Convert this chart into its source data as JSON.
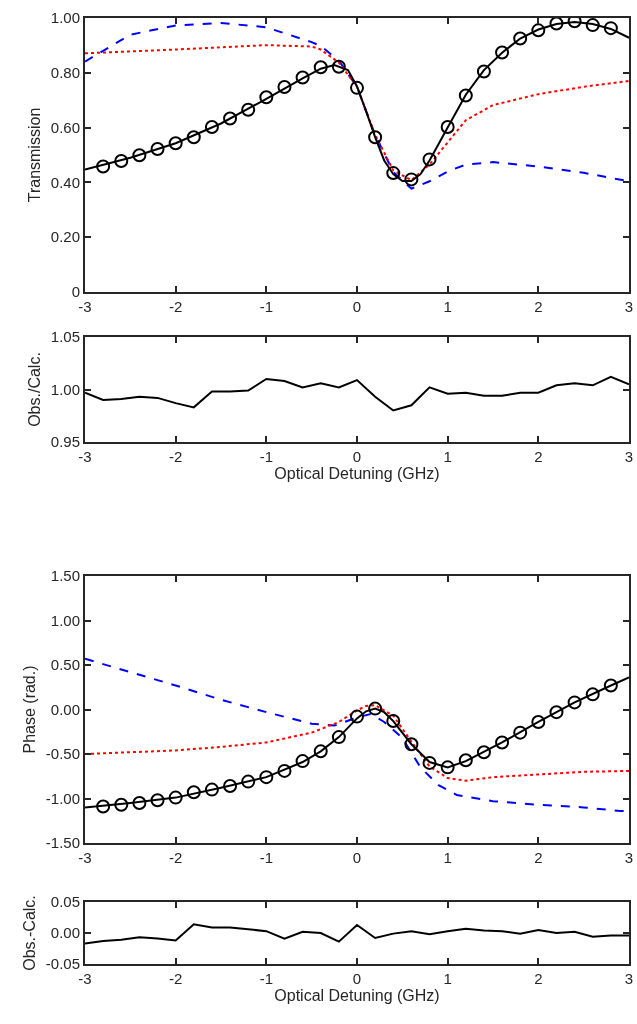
{
  "chart_data": [
    {
      "type": "line",
      "ylabel": "Transmission",
      "xlim": [
        -3,
        3
      ],
      "xticks": [
        -3,
        -2,
        -1,
        0,
        1,
        2,
        3
      ],
      "ylim": [
        0,
        1
      ],
      "yticks": [
        0,
        {
          "value": 0.2,
          "label": "0.20"
        },
        {
          "value": 0.4,
          "label": "0.40"
        },
        {
          "value": 0.6,
          "label": "0.60"
        },
        {
          "value": 0.8,
          "label": "0.80"
        },
        {
          "value": 1,
          "label": "1.00"
        }
      ],
      "series": [
        {
          "color": "#0000ff",
          "line_style": "dashed",
          "x": [
            -3,
            -2.5,
            -2,
            -1.5,
            -1,
            -0.5,
            -0.4,
            -0.2,
            0,
            0.2,
            0.4,
            0.6,
            0.8,
            1.0,
            1.2,
            1.5,
            2.0,
            2.5,
            3
          ],
          "values": [
            0.841,
            0.939,
            0.973,
            0.982,
            0.966,
            0.912,
            0.898,
            0.844,
            0.749,
            0.573,
            0.438,
            0.377,
            0.404,
            0.44,
            0.465,
            0.474,
            0.458,
            0.435,
            0.404
          ]
        },
        {
          "color": "#ff0000",
          "line_style": "dotted",
          "x": [
            -3,
            -2,
            -1,
            -0.5,
            -0.4,
            -0.2,
            0,
            0.2,
            0.4,
            0.6,
            0.8,
            1.0,
            1.2,
            1.5,
            2.0,
            2.5,
            3
          ],
          "values": [
            0.871,
            0.885,
            0.901,
            0.896,
            0.885,
            0.837,
            0.749,
            0.573,
            0.444,
            0.408,
            0.465,
            0.546,
            0.627,
            0.682,
            0.722,
            0.749,
            0.77
          ]
        },
        {
          "color": "#000000",
          "line_style": "solid",
          "x": [
            -3,
            -2.5,
            -2,
            -1.5,
            -1,
            -0.6,
            -0.4,
            -0.25,
            -0.1,
            0,
            0.1,
            0.2,
            0.3,
            0.4,
            0.5,
            0.6,
            0.7,
            0.8,
            1.0,
            1.2,
            1.4,
            1.6,
            1.8,
            2.0,
            2.2,
            2.4,
            2.6,
            2.8,
            3
          ],
          "values": [
            0.447,
            0.49,
            0.543,
            0.615,
            0.705,
            0.78,
            0.815,
            0.828,
            0.81,
            0.75,
            0.66,
            0.565,
            0.48,
            0.43,
            0.405,
            0.405,
            0.43,
            0.48,
            0.6,
            0.72,
            0.81,
            0.873,
            0.925,
            0.958,
            0.978,
            0.985,
            0.978,
            0.96,
            0.928
          ]
        },
        {
          "type": "scatter",
          "color": "#000000",
          "marker": "circle",
          "x": [
            -2.8,
            -2.6,
            -2.4,
            -2.2,
            -2.0,
            -1.8,
            -1.6,
            -1.4,
            -1.2,
            -1.0,
            -0.8,
            -0.6,
            -0.4,
            -0.2,
            0,
            0.2,
            0.4,
            0.6,
            0.8,
            1.0,
            1.2,
            1.4,
            1.6,
            1.8,
            2.0,
            2.2,
            2.4,
            2.6,
            2.8
          ],
          "values": [
            0.458,
            0.478,
            0.499,
            0.522,
            0.543,
            0.565,
            0.602,
            0.633,
            0.665,
            0.711,
            0.748,
            0.783,
            0.82,
            0.822,
            0.745,
            0.565,
            0.434,
            0.411,
            0.484,
            0.602,
            0.717,
            0.805,
            0.874,
            0.925,
            0.955,
            0.98,
            0.988,
            0.974,
            0.963
          ]
        }
      ]
    },
    {
      "type": "line",
      "ylabel": "Obs./Calc.",
      "xlabel": "Optical Detuning (GHz)",
      "xlim": [
        -3,
        3
      ],
      "xticks": [
        -3,
        -2,
        -1,
        0,
        1,
        2,
        3
      ],
      "ylim": [
        0.95,
        1.05
      ],
      "yticks": [
        0.95,
        {
          "value": 1,
          "label": "1.00"
        },
        1.05
      ],
      "series": [
        {
          "color": "#000000",
          "line_style": "solid",
          "x": [
            -3,
            -2.8,
            -2.6,
            -2.4,
            -2.2,
            -2.0,
            -1.8,
            -1.6,
            -1.4,
            -1.2,
            -1.0,
            -0.8,
            -0.6,
            -0.4,
            -0.2,
            0,
            0.2,
            0.4,
            0.6,
            0.8,
            1.0,
            1.2,
            1.4,
            1.6,
            1.8,
            2.0,
            2.2,
            2.4,
            2.6,
            2.8,
            3
          ],
          "values": [
            0.997,
            0.99,
            0.991,
            0.993,
            0.992,
            0.987,
            0.983,
            0.998,
            0.998,
            0.999,
            1.01,
            1.008,
            1.002,
            1.006,
            1.002,
            1.009,
            0.993,
            0.98,
            0.985,
            1.002,
            0.996,
            0.997,
            0.994,
            0.994,
            0.997,
            0.997,
            1.004,
            1.006,
            1.004,
            1.012,
            1.005
          ]
        }
      ]
    },
    {
      "type": "line",
      "ylabel": "Phase (rad.)",
      "xlim": [
        -3,
        3
      ],
      "xticks": [
        -3,
        -2,
        -1,
        0,
        1,
        2,
        3
      ],
      "ylim": [
        -1.5,
        1.5
      ],
      "yticks": [
        {
          "value": -1.5,
          "label": "-1.50"
        },
        {
          "value": -1,
          "label": "-1.00"
        },
        {
          "value": -0.5,
          "label": "-0.50"
        },
        {
          "value": 0,
          "label": "0.00"
        },
        {
          "value": 0.5,
          "label": "0.50"
        },
        {
          "value": 1,
          "label": "1.00"
        },
        {
          "value": 1.5,
          "label": "1.50"
        }
      ],
      "series": [
        {
          "color": "#0000ff",
          "line_style": "dashed",
          "x": [
            -3,
            -2.5,
            -2,
            -1.5,
            -1,
            -0.5,
            -0.25,
            0,
            0.15,
            0.3,
            0.5,
            0.7,
            0.9,
            1.1,
            1.5,
            2.0,
            2.5,
            2.9,
            3
          ],
          "values": [
            0.57,
            0.42,
            0.27,
            0.11,
            -0.03,
            -0.16,
            -0.18,
            -0.09,
            -0.05,
            -0.14,
            -0.32,
            -0.65,
            -0.85,
            -0.96,
            -1.03,
            -1.07,
            -1.1,
            -1.14,
            -1.14
          ]
        },
        {
          "color": "#ff0000",
          "line_style": "dotted",
          "x": [
            -3,
            -2,
            -1.5,
            -1,
            -0.5,
            -0.2,
            0,
            0.1,
            0.2,
            0.4,
            0.6,
            0.8,
            1.0,
            1.2,
            1.5,
            2.0,
            2.5,
            3
          ],
          "values": [
            -0.5,
            -0.46,
            -0.42,
            -0.37,
            -0.26,
            -0.14,
            -0.01,
            0.04,
            0.05,
            -0.07,
            -0.36,
            -0.64,
            -0.77,
            -0.8,
            -0.76,
            -0.73,
            -0.7,
            -0.69
          ]
        },
        {
          "color": "#000000",
          "line_style": "solid",
          "x": [
            -3,
            -2.5,
            -2,
            -1.5,
            -1,
            -0.6,
            -0.4,
            -0.2,
            0,
            0.1,
            0.2,
            0.3,
            0.4,
            0.6,
            0.8,
            1.0,
            1.2,
            1.6,
            2.0,
            2.4,
            2.8,
            3
          ],
          "values": [
            -1.1,
            -1.05,
            -0.99,
            -0.88,
            -0.76,
            -0.59,
            -0.47,
            -0.31,
            -0.1,
            -0.02,
            0.01,
            -0.03,
            -0.13,
            -0.39,
            -0.59,
            -0.65,
            -0.58,
            -0.37,
            -0.14,
            0.08,
            0.27,
            0.36
          ]
        },
        {
          "type": "scatter",
          "color": "#000000",
          "marker": "circle",
          "x": [
            -2.8,
            -2.6,
            -2.4,
            -2.2,
            -2.0,
            -1.8,
            -1.6,
            -1.4,
            -1.2,
            -1.0,
            -0.8,
            -0.6,
            -0.4,
            -0.2,
            0,
            0.2,
            0.4,
            0.6,
            0.8,
            1.0,
            1.2,
            1.4,
            1.6,
            1.8,
            2.0,
            2.2,
            2.4,
            2.6,
            2.8
          ],
          "values": [
            -1.09,
            -1.07,
            -1.05,
            -1.02,
            -0.99,
            -0.93,
            -0.9,
            -0.86,
            -0.81,
            -0.76,
            -0.69,
            -0.58,
            -0.47,
            -0.31,
            -0.08,
            0.01,
            -0.13,
            -0.39,
            -0.6,
            -0.65,
            -0.57,
            -0.48,
            -0.37,
            -0.26,
            -0.14,
            -0.03,
            0.08,
            0.17,
            0.27
          ]
        }
      ]
    },
    {
      "type": "line",
      "ylabel": "Obs.-Calc.",
      "xlabel": "Optical Detuning (GHz)",
      "xlim": [
        -3,
        3
      ],
      "xticks": [
        -3,
        -2,
        -1,
        0,
        1,
        2,
        3
      ],
      "ylim": [
        -0.05,
        0.05
      ],
      "yticks": [
        -0.05,
        {
          "value": 0,
          "label": "0.00"
        },
        0.05
      ],
      "series": [
        {
          "color": "#000000",
          "line_style": "solid",
          "x": [
            -3,
            -2.8,
            -2.6,
            -2.4,
            -2.2,
            -2.0,
            -1.8,
            -1.6,
            -1.4,
            -1.2,
            -1.0,
            -0.8,
            -0.6,
            -0.4,
            -0.2,
            0,
            0.2,
            0.4,
            0.6,
            0.8,
            1.0,
            1.2,
            1.4,
            1.6,
            1.8,
            2.0,
            2.2,
            2.4,
            2.6,
            2.8,
            3
          ],
          "values": [
            -0.017,
            -0.013,
            -0.011,
            -0.007,
            -0.009,
            -0.012,
            0.014,
            0.009,
            0.009,
            0.006,
            0.003,
            -0.009,
            0.002,
            0.0,
            -0.014,
            0.013,
            -0.008,
            -0.001,
            0.003,
            -0.002,
            0.003,
            0.007,
            0.004,
            0.003,
            -0.001,
            0.005,
            0.0,
            0.002,
            -0.006,
            -0.004,
            -0.004
          ]
        }
      ]
    }
  ]
}
